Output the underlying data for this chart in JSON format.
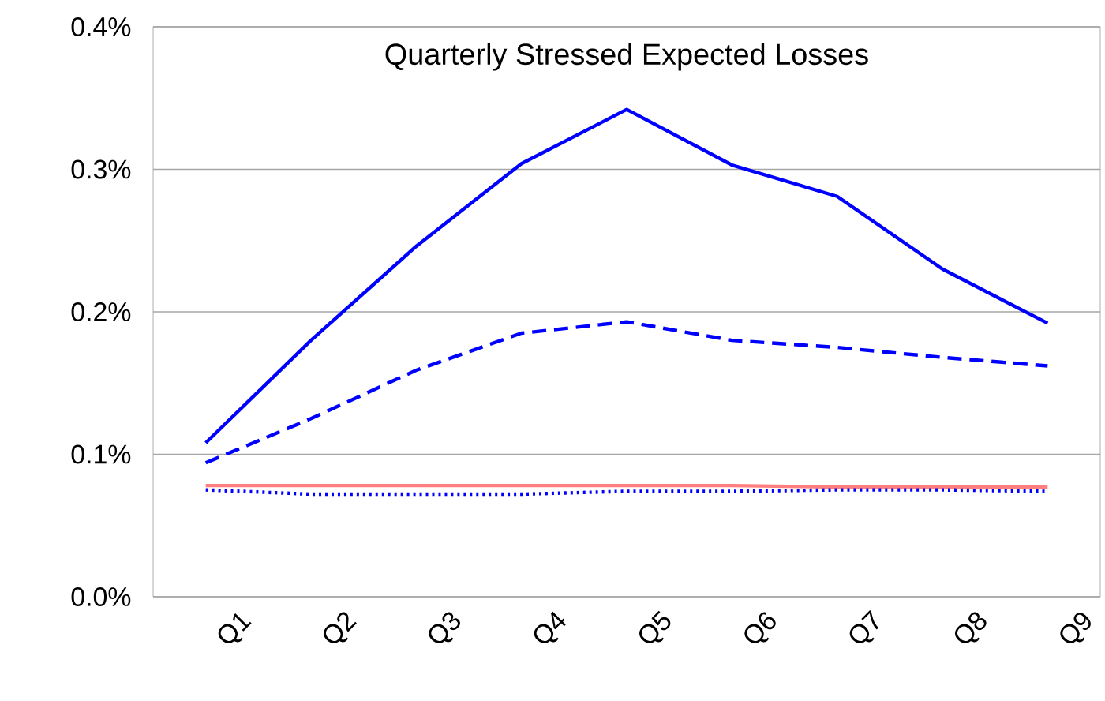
{
  "chart_data": {
    "type": "line",
    "title": "Quarterly Stressed Expected Losses",
    "categories": [
      "Q1",
      "Q2",
      "Q3",
      "Q4",
      "Q5",
      "Q6",
      "Q7",
      "Q8",
      "Q9"
    ],
    "series": [
      {
        "color": "#0000ff",
        "line_style": "solid",
        "values": [
          0.108,
          0.18,
          0.246,
          0.304,
          0.342,
          0.303,
          0.281,
          0.23,
          0.192
        ]
      },
      {
        "color": "#0000ff",
        "line_style": "dashed",
        "values": [
          0.094,
          0.125,
          0.159,
          0.185,
          0.193,
          0.18,
          0.175,
          0.168,
          0.162
        ]
      },
      {
        "color": "#ff7f7f",
        "line_style": "solid",
        "values": [
          0.078,
          0.078,
          0.078,
          0.078,
          0.078,
          0.078,
          0.077,
          0.077,
          0.077
        ]
      },
      {
        "color": "#0000ff",
        "line_style": "dotted",
        "values": [
          0.075,
          0.072,
          0.072,
          0.072,
          0.074,
          0.074,
          0.075,
          0.075,
          0.074
        ]
      }
    ],
    "ylim": [
      0,
      0.4
    ],
    "yticks": [
      {
        "value": 0,
        "label": "0.0%"
      },
      {
        "value": 0.1,
        "label": "0.1%"
      },
      {
        "value": 0.2,
        "label": "0.2%"
      },
      {
        "value": 0.3,
        "label": "0.3%"
      },
      {
        "value": 0.4,
        "label": "0.4%"
      }
    ],
    "grid": "y",
    "marker": "none"
  }
}
